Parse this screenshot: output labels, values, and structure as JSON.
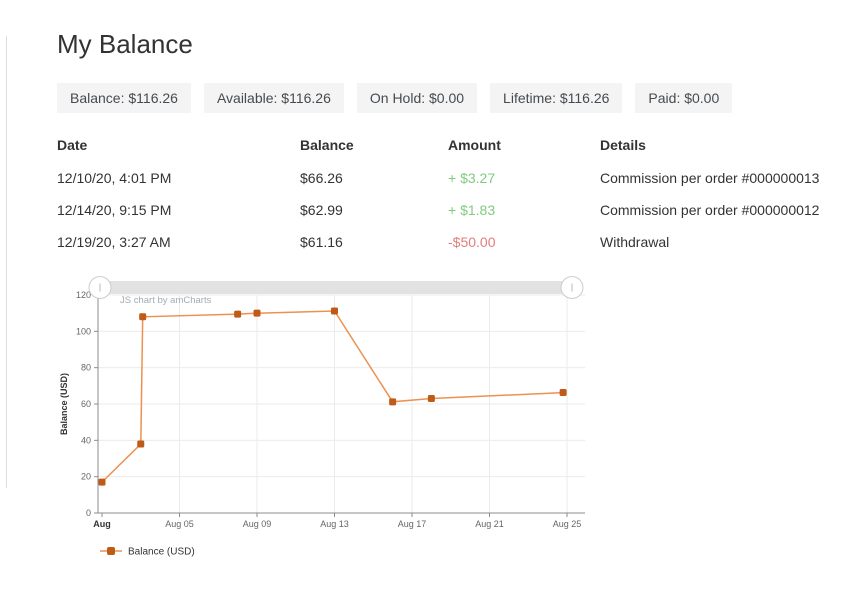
{
  "page": {
    "title": "My Balance"
  },
  "summary_badges": [
    {
      "key": "balance",
      "text": "Balance: $116.26"
    },
    {
      "key": "available",
      "text": "Available: $116.26"
    },
    {
      "key": "on-hold",
      "text": "On Hold: $0.00"
    },
    {
      "key": "lifetime",
      "text": "Lifetime: $116.26"
    },
    {
      "key": "paid",
      "text": "Paid: $0.00"
    }
  ],
  "transactions_table": {
    "columns": [
      "Date",
      "Balance",
      "Amount",
      "Details"
    ],
    "rows": [
      {
        "date": "12/10/20, 4:01 PM",
        "balance": "$66.26",
        "amount": "+ $3.27",
        "amount_type": "positive",
        "details": "Commission per order #000000013"
      },
      {
        "date": "12/14/20, 9:15 PM",
        "balance": "$62.99",
        "amount": "+ $1.83",
        "amount_type": "positive",
        "details": "Commission per order #000000012"
      },
      {
        "date": "12/19/20, 3:27 AM",
        "balance": "$61.16",
        "amount": "-$50.00",
        "amount_type": "negative",
        "details": "Withdrawal"
      }
    ]
  },
  "chart_data": {
    "type": "line",
    "title": "",
    "watermark": "JS chart by amCharts",
    "xlabel": "",
    "ylabel": "Balance (USD)",
    "ylim": [
      0,
      120
    ],
    "y_ticks": [
      0,
      20,
      40,
      60,
      80,
      100,
      120
    ],
    "x_ticks": [
      {
        "day": 1,
        "label": "Aug",
        "bold": true
      },
      {
        "day": 5,
        "label": "Aug 05"
      },
      {
        "day": 9,
        "label": "Aug 09"
      },
      {
        "day": 13,
        "label": "Aug 13"
      },
      {
        "day": 17,
        "label": "Aug 17"
      },
      {
        "day": 21,
        "label": "Aug 21"
      },
      {
        "day": 25,
        "label": "Aug 25"
      }
    ],
    "grid": true,
    "legend_position": "bottom-left",
    "legend": [
      {
        "label": "Balance (USD)"
      }
    ],
    "series": [
      {
        "name": "Balance (USD)",
        "points": [
          {
            "date": "Aug 01",
            "day": 1,
            "value": 17
          },
          {
            "date": "Aug 03",
            "day": 3,
            "value": 38
          },
          {
            "date": "Aug 03",
            "day": 3.1,
            "value": 108
          },
          {
            "date": "Aug 08",
            "day": 8,
            "value": 109.5
          },
          {
            "date": "Aug 09",
            "day": 9,
            "value": 110
          },
          {
            "date": "Aug 13",
            "day": 13,
            "value": 111.2
          },
          {
            "date": "Aug 16",
            "day": 16,
            "value": 61.2
          },
          {
            "date": "Aug 18",
            "day": 18,
            "value": 63
          },
          {
            "date": "Aug 25",
            "day": 24.8,
            "value": 66.3
          }
        ]
      }
    ],
    "colors": {
      "line": "#ec9150",
      "bullet": "#c05a17",
      "grid": "#ebebeb",
      "axis": "#8c8c8c",
      "tick_label": "#666666",
      "axis_title": "#333333",
      "watermark": "#a3abb3",
      "scrollbar_bar": "#e2e2e2",
      "scrollbar_grip_stroke": "#cccccc"
    }
  },
  "colors": {
    "amount_positive": "#82c982",
    "amount_negative": "#e37d7d",
    "badge_bg": "#f4f4f4",
    "text": "#333333"
  }
}
